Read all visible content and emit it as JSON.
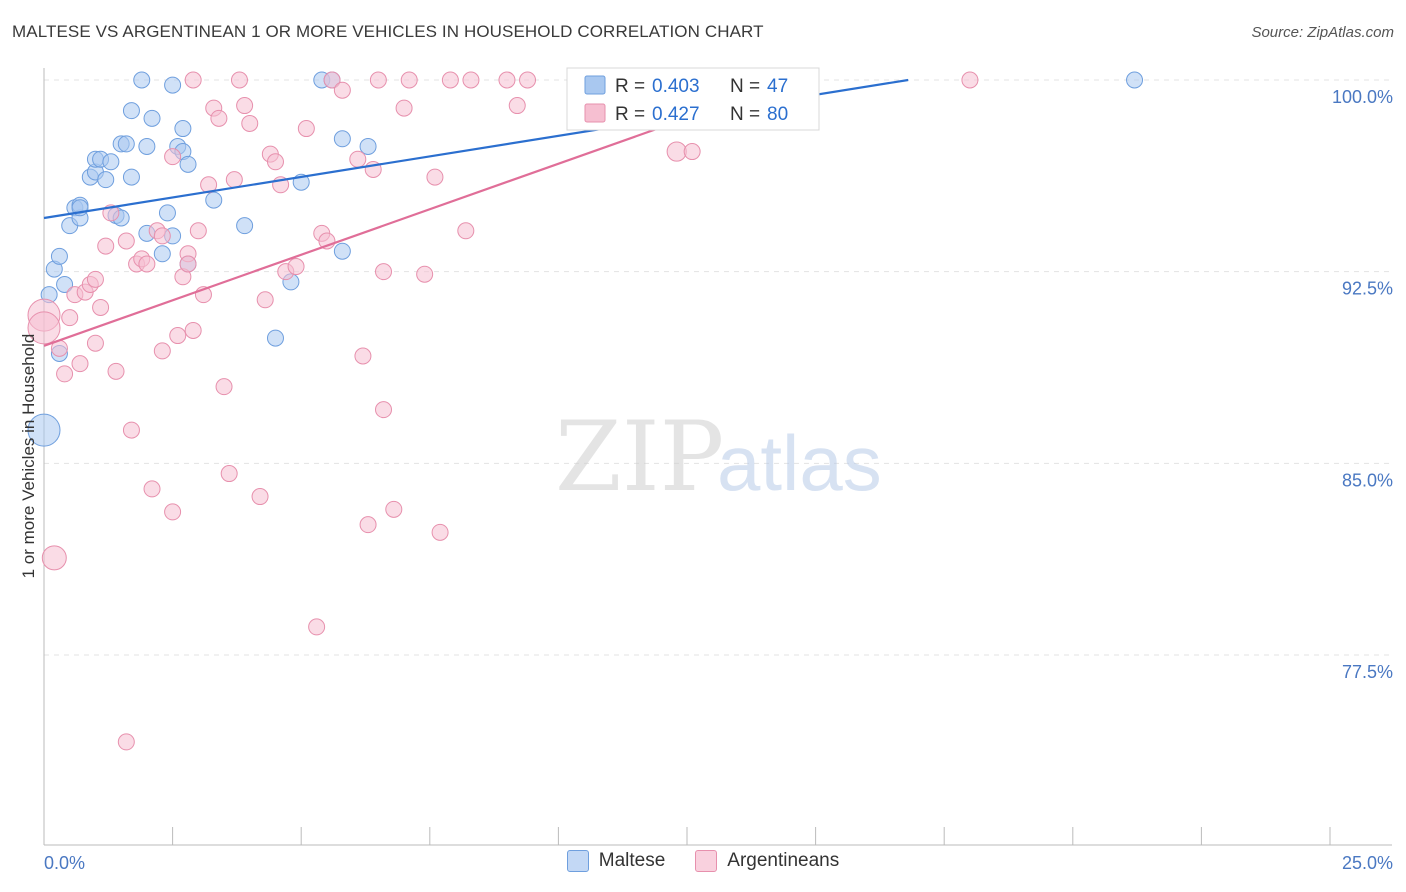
{
  "title": "MALTESE VS ARGENTINEAN 1 OR MORE VEHICLES IN HOUSEHOLD CORRELATION CHART",
  "source": "Source: ZipAtlas.com",
  "watermark": {
    "part1": "ZIP",
    "part2": "atlas"
  },
  "colors": {
    "blue_fill": "#a9c8f0",
    "blue_stroke": "#6f9fde",
    "blue_line": "#2b6fcf",
    "pink_fill": "#f6bfd1",
    "pink_stroke": "#e790ad",
    "pink_line": "#e06e98",
    "axis_label": "#4a78c2",
    "grid": "#e3e3e3"
  },
  "legend": {
    "rows": [
      {
        "series": "Maltese",
        "r_label": "R =",
        "r_value": "0.403",
        "n_label": "N =",
        "n_value": "47"
      },
      {
        "series": "Argentineans",
        "r_label": "R =",
        "r_value": "0.427",
        "n_label": "N =",
        "n_value": "80"
      }
    ]
  },
  "chart_data": {
    "type": "scatter",
    "title": "MALTESE VS ARGENTINEAN 1 OR MORE VEHICLES IN HOUSEHOLD CORRELATION CHART",
    "xlabel": "",
    "ylabel": "1 or more Vehicles in Household",
    "xlim": [
      0,
      25
    ],
    "ylim": [
      70,
      101
    ],
    "x_tick_labels": [
      "0.0%",
      "25.0%"
    ],
    "y_ticks": [
      77.5,
      85.0,
      92.5,
      100.0
    ],
    "y_tick_labels": [
      "77.5%",
      "85.0%",
      "92.5%",
      "100.0%"
    ],
    "legend_position": "top-center",
    "series": [
      {
        "name": "Maltese",
        "trend": {
          "x": [
            0,
            16.8
          ],
          "y": [
            94.6,
            100.0
          ]
        },
        "points": [
          [
            0.0,
            86.3,
            2
          ],
          [
            0.1,
            91.6,
            1
          ],
          [
            0.2,
            92.6,
            1
          ],
          [
            0.3,
            93.1,
            1
          ],
          [
            0.4,
            92.0,
            1
          ],
          [
            0.3,
            89.3,
            1
          ],
          [
            0.5,
            94.3,
            1
          ],
          [
            0.6,
            95.0,
            1
          ],
          [
            0.7,
            94.6,
            1
          ],
          [
            0.7,
            95.1,
            1
          ],
          [
            0.9,
            96.2,
            1
          ],
          [
            1.0,
            96.4,
            1
          ],
          [
            1.0,
            96.9,
            1
          ],
          [
            1.1,
            96.9,
            1
          ],
          [
            1.2,
            96.1,
            1
          ],
          [
            1.3,
            96.8,
            1
          ],
          [
            1.4,
            94.7,
            1
          ],
          [
            1.5,
            94.6,
            1
          ],
          [
            1.5,
            97.5,
            1
          ],
          [
            1.6,
            97.5,
            1
          ],
          [
            1.7,
            98.8,
            1
          ],
          [
            1.7,
            96.2,
            1
          ],
          [
            1.9,
            100.0,
            1
          ],
          [
            2.0,
            97.4,
            1
          ],
          [
            2.0,
            94.0,
            1
          ],
          [
            2.1,
            98.5,
            1
          ],
          [
            2.3,
            93.2,
            1
          ],
          [
            2.4,
            94.8,
            1
          ],
          [
            2.5,
            93.9,
            1
          ],
          [
            2.5,
            99.8,
            1
          ],
          [
            2.6,
            97.4,
            1
          ],
          [
            2.7,
            97.2,
            1
          ],
          [
            2.7,
            98.1,
            1
          ],
          [
            2.8,
            92.8,
            1
          ],
          [
            2.8,
            96.7,
            1
          ],
          [
            3.3,
            95.3,
            1
          ],
          [
            3.9,
            94.3,
            1
          ],
          [
            4.5,
            89.9,
            1
          ],
          [
            4.8,
            92.1,
            1
          ],
          [
            5.0,
            96.0,
            1
          ],
          [
            5.4,
            100.0,
            1
          ],
          [
            5.6,
            100.0,
            1
          ],
          [
            5.8,
            97.7,
            1
          ],
          [
            5.8,
            93.3,
            1
          ],
          [
            6.3,
            97.4,
            1
          ],
          [
            21.2,
            100.0,
            1
          ],
          [
            0.7,
            95.0,
            1
          ]
        ]
      },
      {
        "name": "Argentineans",
        "trend": {
          "x": [
            0,
            14.6
          ],
          "y": [
            89.6,
            100.0
          ]
        },
        "points": [
          [
            0.0,
            90.8,
            2
          ],
          [
            0.0,
            90.3,
            2
          ],
          [
            0.2,
            81.3,
            1.5
          ],
          [
            0.3,
            89.5,
            1
          ],
          [
            0.4,
            88.5,
            1
          ],
          [
            0.5,
            90.7,
            1
          ],
          [
            0.6,
            91.6,
            1
          ],
          [
            0.7,
            88.9,
            1
          ],
          [
            0.8,
            91.7,
            1
          ],
          [
            0.9,
            92.0,
            1
          ],
          [
            1.0,
            89.7,
            1
          ],
          [
            1.0,
            92.2,
            1
          ],
          [
            1.1,
            91.1,
            1
          ],
          [
            1.2,
            93.5,
            1
          ],
          [
            1.3,
            94.8,
            1
          ],
          [
            1.4,
            88.6,
            1
          ],
          [
            1.6,
            93.7,
            1
          ],
          [
            1.7,
            86.3,
            1
          ],
          [
            1.6,
            74.1,
            1
          ],
          [
            1.8,
            92.8,
            1
          ],
          [
            1.9,
            93.0,
            1
          ],
          [
            2.0,
            92.8,
            1
          ],
          [
            2.1,
            84.0,
            1
          ],
          [
            2.2,
            94.1,
            1
          ],
          [
            2.3,
            93.9,
            1
          ],
          [
            2.3,
            89.4,
            1
          ],
          [
            2.5,
            83.1,
            1
          ],
          [
            2.5,
            97.0,
            1
          ],
          [
            2.6,
            90.0,
            1
          ],
          [
            2.7,
            92.3,
            1
          ],
          [
            2.8,
            93.2,
            1
          ],
          [
            2.8,
            92.8,
            1
          ],
          [
            2.9,
            90.2,
            1
          ],
          [
            3.0,
            94.1,
            1
          ],
          [
            3.1,
            91.6,
            1
          ],
          [
            3.2,
            95.9,
            1
          ],
          [
            3.3,
            98.9,
            1
          ],
          [
            3.4,
            98.5,
            1
          ],
          [
            3.5,
            88.0,
            1
          ],
          [
            3.6,
            84.6,
            1
          ],
          [
            3.7,
            96.1,
            1
          ],
          [
            3.8,
            100.0,
            1
          ],
          [
            3.9,
            99.0,
            1
          ],
          [
            4.0,
            98.3,
            1
          ],
          [
            4.2,
            83.7,
            1
          ],
          [
            4.3,
            91.4,
            1
          ],
          [
            4.4,
            97.1,
            1
          ],
          [
            4.5,
            96.8,
            1
          ],
          [
            4.6,
            95.9,
            1
          ],
          [
            4.7,
            92.5,
            1
          ],
          [
            4.9,
            92.7,
            1
          ],
          [
            5.1,
            98.1,
            1
          ],
          [
            5.3,
            78.6,
            1
          ],
          [
            5.4,
            94.0,
            1
          ],
          [
            5.5,
            93.7,
            1
          ],
          [
            5.6,
            100.0,
            1
          ],
          [
            5.8,
            99.6,
            1
          ],
          [
            6.1,
            96.9,
            1
          ],
          [
            6.2,
            89.2,
            1
          ],
          [
            6.3,
            82.6,
            1
          ],
          [
            6.4,
            96.5,
            1
          ],
          [
            6.5,
            100.0,
            1
          ],
          [
            6.6,
            92.5,
            1
          ],
          [
            6.6,
            87.1,
            1
          ],
          [
            6.8,
            83.2,
            1
          ],
          [
            7.1,
            100.0,
            1
          ],
          [
            7.4,
            92.4,
            1
          ],
          [
            7.6,
            96.2,
            1
          ],
          [
            7.7,
            82.3,
            1
          ],
          [
            7.9,
            100.0,
            1
          ],
          [
            8.2,
            94.1,
            1
          ],
          [
            8.3,
            100.0,
            1
          ],
          [
            9.0,
            100.0,
            1
          ],
          [
            9.2,
            99.0,
            1
          ],
          [
            9.4,
            100.0,
            1
          ],
          [
            12.3,
            97.2,
            1.2
          ],
          [
            12.6,
            97.2,
            1
          ],
          [
            18.0,
            100.0,
            1
          ],
          [
            7.0,
            98.9,
            1
          ],
          [
            2.9,
            100.0,
            1
          ]
        ]
      }
    ]
  }
}
